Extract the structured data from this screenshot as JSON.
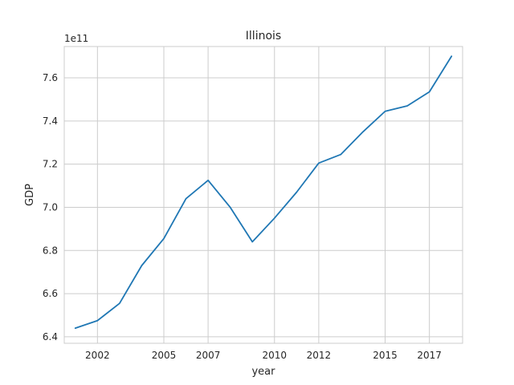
{
  "chart_data": {
    "type": "line",
    "title": "Illinois",
    "xlabel": "year",
    "ylabel": "GDP",
    "y_offset_label": "1e11",
    "x_ticks": [
      "2002",
      "2005",
      "2007",
      "2010",
      "2012",
      "2015",
      "2017"
    ],
    "y_ticks": [
      "6.4",
      "6.6",
      "6.8",
      "7.0",
      "7.2",
      "7.4",
      "7.6"
    ],
    "grid": true,
    "series": [
      {
        "color": "#1f77b4",
        "x": [
          2001,
          2002,
          2003,
          2004,
          2005,
          2006,
          2007,
          2008,
          2009,
          2010,
          2011,
          2012,
          2013,
          2014,
          2015,
          2016,
          2017,
          2018
        ],
        "y": [
          6.44,
          6.475,
          6.555,
          6.73,
          6.855,
          7.04,
          7.125,
          7.0,
          6.84,
          6.95,
          7.07,
          7.205,
          7.245,
          7.35,
          7.445,
          7.47,
          7.535,
          7.7
        ]
      }
    ]
  }
}
